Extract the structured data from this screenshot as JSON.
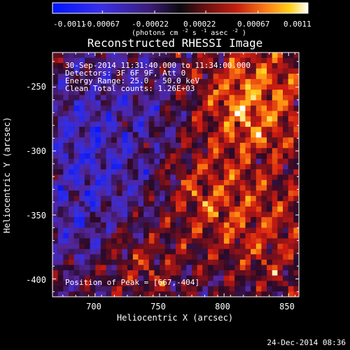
{
  "figure": {
    "colorbar": {
      "tick_labels": [
        "-0.0011",
        "-0.00067",
        "-0.00022",
        "0.00022",
        "0.00067",
        "0.0011"
      ],
      "units_label": "(photons cm",
      "units_exp1": "-2",
      "units_s": " s",
      "units_exp2": "-1",
      "units_asec": " asec",
      "units_exp3": "-2",
      "units_close": ")"
    },
    "title": "Reconstructed RHESSI Image",
    "annotations": {
      "time_range": "30-Sep-2014 11:31:40.000 to 11:34:00.000",
      "detectors": "Detectors: 3F 6F 9F, Att 0",
      "energy_range": "Energy Range: 25.0 - 50.0 keV",
      "clean_totals": "Clean    Total counts: 1.26E+03",
      "peak_position": "Position of Peak = [667,-404]"
    },
    "axes": {
      "x_label": "Heliocentric X (arcsec)",
      "y_label": "Heliocentric Y (arcsec)"
    },
    "footer_date": "24-Dec-2014 08:36"
  },
  "chart_data": {
    "type": "heatmap",
    "title": "Reconstructed RHESSI Image",
    "xlabel": "Heliocentric X (arcsec)",
    "ylabel": "Heliocentric Y (arcsec)",
    "xlim": [
      667,
      858
    ],
    "ylim": [
      -414,
      -223
    ],
    "x_ticks": [
      700,
      750,
      800,
      850
    ],
    "y_ticks": [
      -400,
      -350,
      -300,
      -250
    ],
    "colorbar": {
      "range": [
        -0.0011,
        0.0011
      ],
      "tick_values": [
        -0.0011,
        -0.00067,
        -0.00022,
        0.00022,
        0.00067,
        0.0011
      ]
    },
    "peak_position": [
      667,
      -404
    ]
  }
}
